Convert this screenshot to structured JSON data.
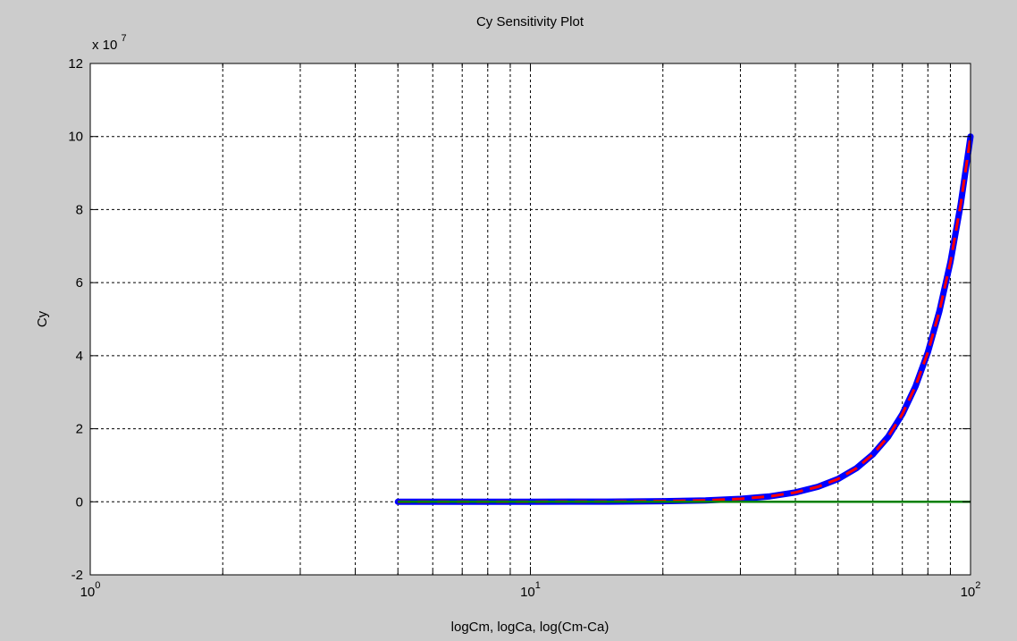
{
  "figure": {
    "background": "#cccccc",
    "axes_background": "#ffffff"
  },
  "chart_data": {
    "type": "line",
    "title": "Cy Sensitivity Plot",
    "xlabel": "logCm, logCa, log(Cm-Ca)",
    "ylabel": "Cy",
    "xscale": "log",
    "xlim": [
      1,
      100
    ],
    "ylim": [
      -20000000,
      120000000
    ],
    "y_exponent_label": {
      "base": "x 10",
      "exponent": "7"
    },
    "x_major_ticks": [
      {
        "value": 1,
        "base": "10",
        "exponent": "0"
      },
      {
        "value": 10,
        "base": "10",
        "exponent": "1"
      },
      {
        "value": 100,
        "base": "10",
        "exponent": "2"
      }
    ],
    "y_ticks": [
      {
        "value": -20000000,
        "label": "-2"
      },
      {
        "value": 0,
        "label": "0"
      },
      {
        "value": 20000000,
        "label": "2"
      },
      {
        "value": 40000000,
        "label": "4"
      },
      {
        "value": 60000000,
        "label": "6"
      },
      {
        "value": 80000000,
        "label": "8"
      },
      {
        "value": 100000000,
        "label": "10"
      },
      {
        "value": 120000000,
        "label": "12"
      }
    ],
    "grid": true,
    "series": [
      {
        "color": "#0000ff",
        "style": "solid-thick",
        "x": [
          5,
          10,
          15,
          20,
          25,
          30,
          35,
          40,
          45,
          50,
          55,
          60,
          65,
          70,
          75,
          80,
          85,
          90,
          95,
          100
        ],
        "y": [
          0,
          10000,
          50000,
          160000,
          390000,
          810000,
          1500000,
          2560000,
          4100000,
          6250000,
          9150000,
          12960000,
          17850000,
          24010000,
          31640000,
          40960000,
          52200000,
          65610000,
          81450000,
          100000000
        ]
      },
      {
        "color": "#ff0000",
        "style": "dashed",
        "x": [
          5,
          10,
          15,
          20,
          25,
          30,
          35,
          40,
          45,
          50,
          55,
          60,
          65,
          70,
          75,
          80,
          85,
          90,
          95,
          100
        ],
        "y": [
          0,
          10000,
          50000,
          160000,
          390000,
          810000,
          1500000,
          2560000,
          4100000,
          6250000,
          9150000,
          12960000,
          17850000,
          24010000,
          31640000,
          40960000,
          52200000,
          65610000,
          81450000,
          100000000
        ]
      },
      {
        "color": "#008000",
        "style": "solid",
        "x": [
          5,
          100
        ],
        "y": [
          0,
          0
        ]
      }
    ]
  }
}
